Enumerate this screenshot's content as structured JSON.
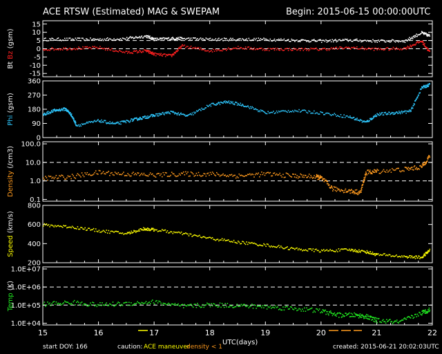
{
  "header": {
    "title": "ACE RTSW (Estimated) MAG & SWEPAM",
    "begin": "Begin: 2015-06-15 00:00:00UTC"
  },
  "footer": {
    "start_doy": "start DOY: 166",
    "caution_label": "caution:",
    "ace_maneuver": "ACE maneuver",
    "density_note": "density < 1",
    "xlabel": "UTC(days)",
    "created": "created: 2015-06-21 20:02:03UTC"
  },
  "colors": {
    "bt": "#ffffff",
    "bz": "#ff2020",
    "phi": "#2ec8ff",
    "density": "#ff9a1e",
    "speed": "#ffff00",
    "temp": "#22ee22",
    "maneuver": "#ffff00",
    "density_low": "#ff9a1e"
  },
  "chart_data": [
    {
      "type": "scatter",
      "ylabel": [
        "Bt",
        "Bz",
        "(gsm)"
      ],
      "ylim": [
        -17,
        17
      ],
      "yticks": [
        -15,
        -10,
        -5,
        0,
        5,
        10,
        15
      ],
      "ytick_labels": [
        "-15",
        "-10",
        "-5",
        "0",
        "5",
        "10",
        "15"
      ],
      "dashed": [
        5,
        0
      ],
      "x": [
        15.0,
        15.5,
        16.0,
        16.5,
        16.85,
        17.0,
        17.3,
        17.5,
        18.0,
        18.5,
        19.0,
        19.5,
        20.0,
        20.5,
        21.0,
        21.5,
        21.8,
        21.95
      ],
      "series": [
        {
          "name": "Bt",
          "values": [
            6,
            6,
            6,
            6.5,
            8,
            6,
            6.5,
            6.5,
            6,
            6,
            6,
            5.5,
            5,
            5.5,
            5,
            5,
            10,
            8
          ]
        },
        {
          "name": "Bz",
          "values": [
            0,
            0.5,
            1,
            -2,
            -1,
            -3,
            -4,
            2,
            -1,
            1,
            0,
            0,
            0,
            1,
            0,
            0.5,
            5,
            -2
          ]
        }
      ]
    },
    {
      "type": "scatter",
      "ylabel": [
        "Phi",
        "(gsm)"
      ],
      "ylim": [
        0,
        360
      ],
      "yticks": [
        0,
        90,
        180,
        270,
        360
      ],
      "ytick_labels": [
        "0",
        "90",
        "180",
        "270",
        "360"
      ],
      "dashed": [],
      "x": [
        15.0,
        15.2,
        15.4,
        15.5,
        15.6,
        16.0,
        16.3,
        16.6,
        16.8,
        17.0,
        17.3,
        17.6,
        18.0,
        18.3,
        18.6,
        19.0,
        19.5,
        20.0,
        20.5,
        20.8,
        21.0,
        21.3,
        21.6,
        21.8,
        21.95
      ],
      "series": [
        {
          "name": "Phi",
          "values": [
            150,
            175,
            185,
            150,
            80,
            110,
            90,
            115,
            130,
            145,
            165,
            140,
            210,
            230,
            210,
            160,
            175,
            160,
            135,
            100,
            150,
            160,
            170,
            320,
            340
          ]
        }
      ]
    },
    {
      "type": "scatter",
      "log": true,
      "ylabel": [
        "Density",
        "(/cm3)"
      ],
      "ylim": [
        0.08,
        130
      ],
      "yticks": [
        0.1,
        1,
        10,
        100
      ],
      "ytick_labels": [
        "0.1",
        "1.0",
        "10.0",
        "100.0"
      ],
      "dashed": [
        10,
        1
      ],
      "x": [
        15.0,
        15.5,
        16.0,
        16.5,
        17.0,
        17.5,
        18.0,
        18.5,
        19.0,
        19.5,
        19.9,
        20.0,
        20.2,
        20.5,
        20.7,
        20.8,
        21.0,
        21.5,
        21.8,
        21.95
      ],
      "series": [
        {
          "name": "Density",
          "values": [
            1.5,
            1.8,
            3,
            2.5,
            2.2,
            2.5,
            2.5,
            2.0,
            2.5,
            2.0,
            1.8,
            1.5,
            0.4,
            0.3,
            0.25,
            3,
            3.5,
            4.5,
            6,
            25
          ]
        }
      ]
    },
    {
      "type": "scatter",
      "ylabel": [
        "Speed",
        "(km/s)"
      ],
      "ylim": [
        200,
        800
      ],
      "yticks": [
        200,
        400,
        600,
        800
      ],
      "ytick_labels": [
        "200",
        "400",
        "600",
        "800"
      ],
      "dashed": [],
      "x": [
        15.0,
        15.5,
        16.0,
        16.5,
        16.8,
        17.0,
        17.5,
        18.0,
        18.5,
        19.0,
        19.5,
        20.0,
        20.5,
        20.8,
        21.0,
        21.5,
        21.8,
        21.95
      ],
      "series": [
        {
          "name": "Speed",
          "values": [
            600,
            580,
            540,
            510,
            560,
            550,
            510,
            460,
            420,
            390,
            350,
            330,
            340,
            320,
            290,
            270,
            260,
            340
          ]
        }
      ]
    },
    {
      "type": "scatter",
      "log": true,
      "ylabel": [
        "Temp",
        "(K)"
      ],
      "ylim": [
        8000,
        13000000
      ],
      "yticks": [
        10000,
        100000,
        1000000,
        10000000
      ],
      "ytick_labels": [
        "1.0E+04",
        "1.0E+05",
        "1.0E+06",
        "1.0E+07"
      ],
      "dashed": [
        1000000,
        100000
      ],
      "x": [
        15.0,
        15.5,
        16.0,
        16.5,
        17.0,
        17.5,
        18.0,
        18.5,
        19.0,
        19.5,
        20.0,
        20.3,
        20.6,
        20.8,
        21.0,
        21.4,
        21.8,
        21.95
      ],
      "series": [
        {
          "name": "Temp",
          "values": [
            120000,
            150000,
            110000,
            130000,
            160000,
            90000,
            110000,
            100000,
            85000,
            70000,
            50000,
            30000,
            30000,
            25000,
            15000,
            12000,
            40000,
            60000
          ]
        }
      ]
    }
  ],
  "xaxis": {
    "xlim": [
      15,
      22
    ],
    "ticks": [
      15,
      16,
      17,
      18,
      19,
      20,
      21,
      22
    ],
    "tick_labels": [
      "15",
      "16",
      "17",
      "18",
      "19",
      "20",
      "21",
      "22"
    ]
  }
}
